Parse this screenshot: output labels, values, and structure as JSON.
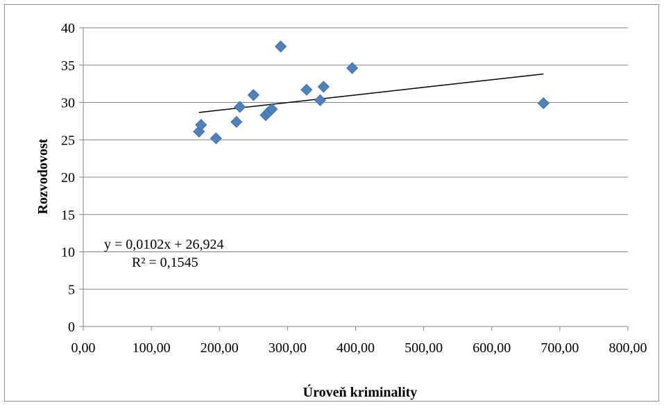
{
  "chart_data": {
    "type": "scatter",
    "xlabel": "Úroveň kriminality",
    "ylabel": "Rozvodovost",
    "xlim": [
      0,
      800
    ],
    "ylim": [
      0,
      40
    ],
    "x_ticks": [
      "0,00",
      "100,00",
      "200,00",
      "300,00",
      "400,00",
      "500,00",
      "600,00",
      "700,00",
      "800,00"
    ],
    "y_ticks": [
      "0",
      "5",
      "10",
      "15",
      "20",
      "25",
      "30",
      "35",
      "40"
    ],
    "grid": "horizontal",
    "marker_color": "#4f81bd",
    "trendline_color": "#000000",
    "points": [
      {
        "x": 170,
        "y": 26.1
      },
      {
        "x": 173,
        "y": 27.0
      },
      {
        "x": 195,
        "y": 25.2
      },
      {
        "x": 225,
        "y": 27.4
      },
      {
        "x": 230,
        "y": 29.4
      },
      {
        "x": 250,
        "y": 31.0
      },
      {
        "x": 268,
        "y": 28.3
      },
      {
        "x": 272,
        "y": 28.7
      },
      {
        "x": 277,
        "y": 29.1
      },
      {
        "x": 290,
        "y": 37.5
      },
      {
        "x": 328,
        "y": 31.7
      },
      {
        "x": 348,
        "y": 30.3
      },
      {
        "x": 353,
        "y": 32.1
      },
      {
        "x": 395,
        "y": 34.6
      },
      {
        "x": 676,
        "y": 29.9
      }
    ],
    "trendline": {
      "slope": 0.0102,
      "intercept": 26.924,
      "x_range": [
        170,
        676
      ],
      "equation": "y = 0,0102x + 26,924",
      "r_squared": "R² = 0,1545"
    }
  }
}
